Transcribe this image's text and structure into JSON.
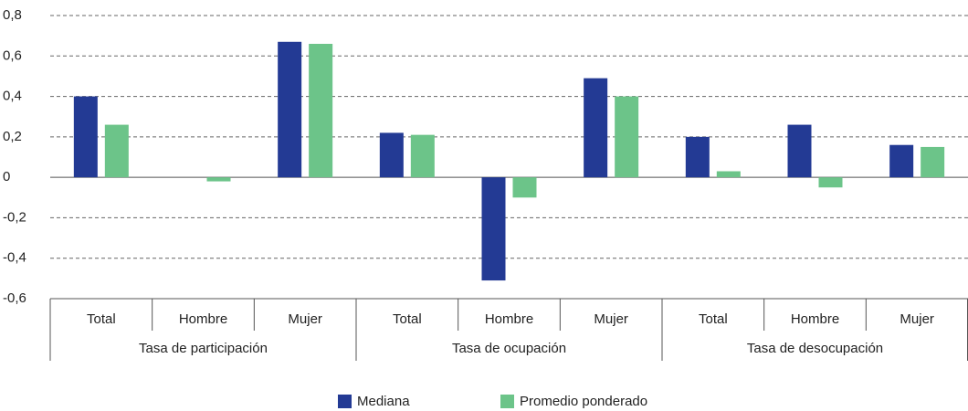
{
  "chart_data": {
    "type": "bar",
    "categories": [
      "Total",
      "Hombre",
      "Mujer",
      "Total",
      "Hombre",
      "Mujer",
      "Total",
      "Hombre",
      "Mujer"
    ],
    "groups": [
      "Tasa de participación",
      "Tasa de ocupación",
      "Tasa de desocupación"
    ],
    "series": [
      {
        "name": "Mediana",
        "color": "#233a94",
        "values": [
          0.4,
          0,
          0.67,
          0.22,
          -0.51,
          0.49,
          0.2,
          0.26,
          0.16
        ]
      },
      {
        "name": "Promedio ponderado",
        "color": "#6cc489",
        "values": [
          0.26,
          -0.02,
          0.66,
          0.21,
          -0.1,
          0.4,
          0.03,
          -0.05,
          0.15
        ]
      }
    ],
    "ylim": [
      -0.6,
      0.8
    ],
    "yticks": [
      {
        "value": -0.6,
        "label": "-0,6"
      },
      {
        "value": -0.4,
        "label": "-0,4"
      },
      {
        "value": -0.2,
        "label": "-0,2"
      },
      0,
      {
        "value": 0.2,
        "label": "0,2"
      },
      {
        "value": 0.4,
        "label": "0,4"
      },
      {
        "value": 0.6,
        "label": "0,6"
      },
      {
        "value": 0.8,
        "label": "0,8"
      }
    ],
    "grid": true
  }
}
